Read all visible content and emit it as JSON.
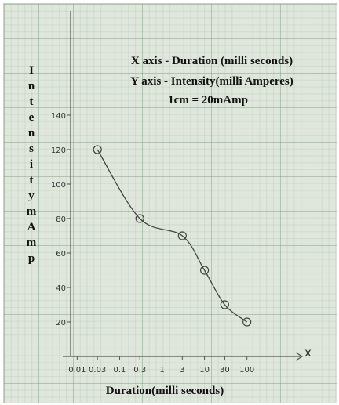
{
  "chart_data": {
    "type": "line",
    "title": "X axis - Duration (milli seconds)",
    "subtitle": "Y axis - Intensity(milli Amperes)",
    "annotation": "1cm = 20mAmp",
    "x_label": "Duration(milli seconds)",
    "y_label": "IntensitymAmp",
    "x_axis_letter": "x",
    "x_scale": "log",
    "x": [
      0.03,
      0.3,
      3,
      10,
      30,
      100
    ],
    "series": [
      {
        "color": "#444444",
        "values": [
          120,
          80,
          70,
          50,
          30,
          20
        ]
      }
    ],
    "xlim": [
      0.007,
      2000
    ],
    "xticks": [
      0.01,
      0.03,
      0.1,
      0.3,
      1,
      3,
      10,
      30,
      100
    ],
    "ylim": [
      0,
      145
    ],
    "yticks": [
      20,
      40,
      60,
      80,
      100,
      120,
      140
    ]
  }
}
